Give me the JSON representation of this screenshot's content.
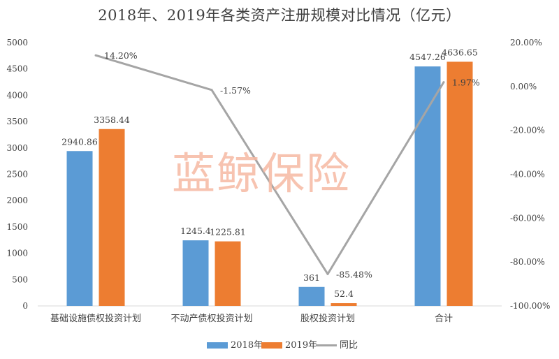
{
  "chart_data": {
    "type": "bar",
    "title": "2018年、2019年各类资产注册规模对比情况（亿元）",
    "categories": [
      "基础设施债权投资计划",
      "不动产债权投资计划",
      "股权投资计划",
      "合计"
    ],
    "series": [
      {
        "name": "2018年",
        "type": "bar",
        "color": "#5b9bd5",
        "values": [
          2940.86,
          1245.4,
          361,
          4547.26
        ],
        "labels": [
          "2940.86",
          "1245.4",
          "361",
          "4547.26"
        ]
      },
      {
        "name": "2019年",
        "type": "bar",
        "color": "#ed7d31",
        "values": [
          3358.44,
          1225.81,
          52.4,
          4636.65
        ],
        "labels": [
          "3358.44",
          "1225.81",
          "52.4",
          "4636.65"
        ]
      },
      {
        "name": "同比",
        "type": "line",
        "axis": "secondary",
        "color": "#a5a5a5",
        "values": [
          14.2,
          -1.57,
          -85.48,
          1.97
        ],
        "labels": [
          "14.20%",
          "-1.57%",
          "-85.48%",
          "1.97%"
        ]
      }
    ],
    "y_axis": {
      "ylim": [
        0,
        5000
      ],
      "ticks": [
        "0",
        "500",
        "1000",
        "1500",
        "2000",
        "2500",
        "3000",
        "3500",
        "4000",
        "4500",
        "5000"
      ]
    },
    "y2_axis": {
      "ylim": [
        -100,
        20
      ],
      "ticks": [
        "-100.00%",
        "-80.00%",
        "-60.00%",
        "-40.00%",
        "-20.00%",
        "0.00%",
        "20.00%"
      ]
    },
    "grid": false,
    "legend_position": "bottom"
  },
  "watermark": "蓝鲸保险"
}
